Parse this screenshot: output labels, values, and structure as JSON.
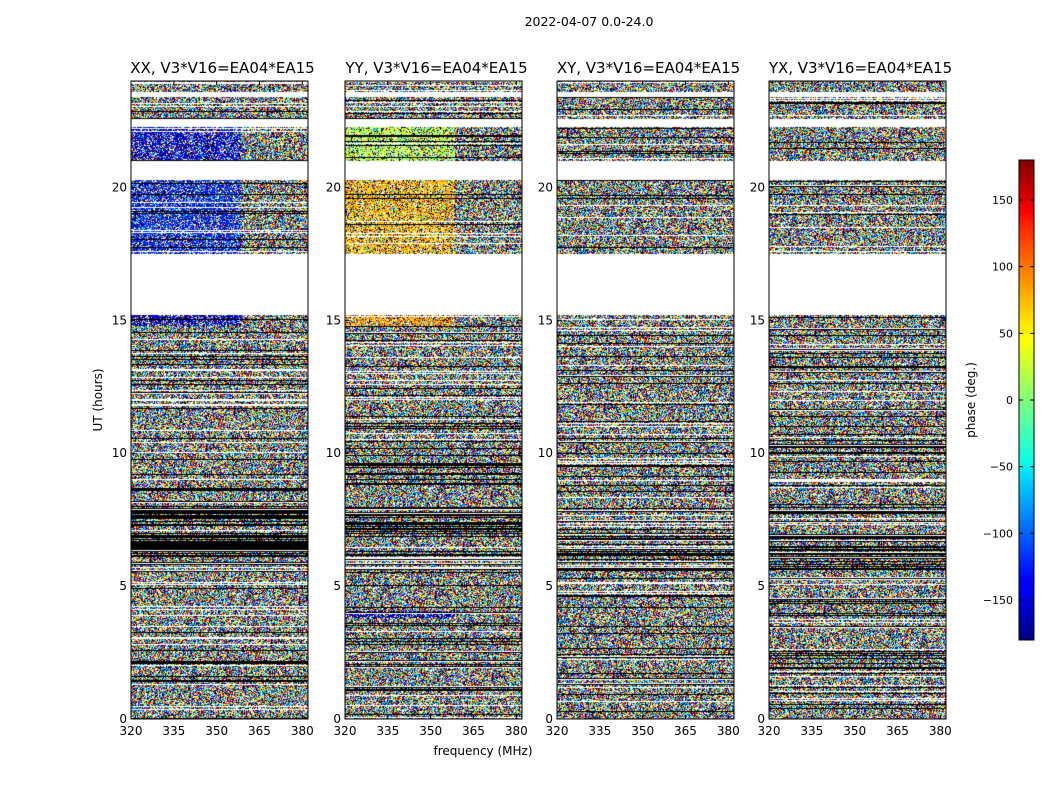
{
  "chart_data": {
    "type": "heatmap",
    "suptitle": "2022-04-07 0.0-24.0",
    "xlabel": "frequency (MHz)",
    "ylabel": "UT (hours)",
    "xlim": [
      320,
      382
    ],
    "ylim": [
      0,
      24
    ],
    "xticks": [
      320,
      335,
      350,
      365,
      380
    ],
    "yticks": [
      0,
      5,
      10,
      15,
      20
    ],
    "panels": [
      {
        "title": "XX, V3*V16=EA04*EA15",
        "coherent": [
          {
            "t0": 17.5,
            "t1": 20.3,
            "phase": -120
          },
          {
            "t0": 21.0,
            "t1": 22.3,
            "phase": -140
          },
          {
            "t0": 14.8,
            "t1": 15.2,
            "phase": -150
          }
        ]
      },
      {
        "title": "YY, V3*V16=EA04*EA15",
        "coherent": [
          {
            "t0": 17.5,
            "t1": 20.3,
            "phase": 70
          },
          {
            "t0": 21.0,
            "t1": 22.3,
            "phase": 20
          },
          {
            "t0": 14.8,
            "t1": 15.2,
            "phase": 80
          },
          {
            "t0": 3.8,
            "t1": 4.1,
            "phase": -160
          }
        ]
      },
      {
        "title": "XY, V3*V16=EA04*EA15",
        "coherent": []
      },
      {
        "title": "YX, V3*V16=EA04*EA15",
        "coherent": []
      }
    ],
    "gaps_hours": [
      [
        15.2,
        17.5
      ],
      [
        20.3,
        21.0
      ],
      [
        22.3,
        22.6
      ],
      [
        23.4,
        23.6
      ]
    ],
    "colorbar": {
      "label": "phase (deg.)",
      "range": [
        -180,
        180
      ],
      "ticks": [
        150,
        100,
        50,
        0,
        -50,
        -100,
        -150
      ],
      "tick_labels": [
        "150",
        "100",
        "50",
        "0",
        "−50",
        "−100",
        "−150"
      ],
      "colormap": "jet"
    }
  }
}
